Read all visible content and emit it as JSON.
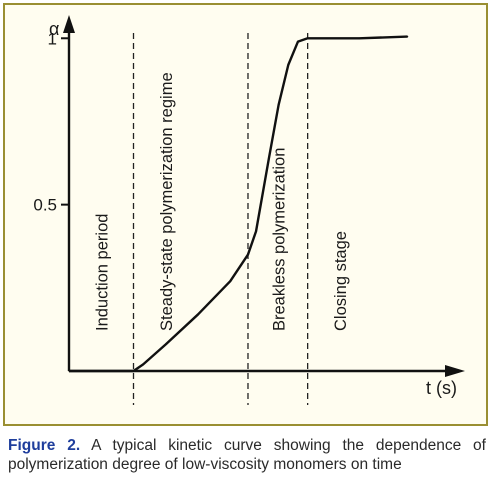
{
  "chart_data": {
    "type": "line",
    "title": "",
    "xlabel": "t (s)",
    "ylabel": "α",
    "ylim": [
      0,
      1.1
    ],
    "xlim": [
      0,
      12
    ],
    "yticks": [
      {
        "value": 0.5,
        "label": "0.5"
      },
      {
        "value": 1,
        "label": "1"
      }
    ],
    "series": [
      {
        "x": [
          0,
          2.0,
          2.3,
          3.0,
          4.0,
          5.0,
          5.55,
          5.8,
          6.2,
          6.5,
          6.8,
          7.1,
          7.4,
          8.0,
          9.0,
          10.5
        ],
        "y": [
          0.0,
          0.0,
          0.02,
          0.08,
          0.17,
          0.27,
          0.35,
          0.42,
          0.64,
          0.8,
          0.92,
          0.99,
          1.0,
          1.0,
          1.0,
          1.005
        ]
      }
    ],
    "stage_boundaries": [
      2.0,
      5.55,
      7.4
    ],
    "regions": [
      {
        "label": "Induction period",
        "x": 1.0
      },
      {
        "label": "Steady-state polymerization regime",
        "x": 3.0
      },
      {
        "label": "Breakless polymerization",
        "x": 6.5
      },
      {
        "label": "Closing stage",
        "x": 8.4
      }
    ]
  },
  "caption": {
    "figure_label": "Figure 2.",
    "text": " A typical kinetic curve showing the dependence of polymerization degree of low-viscosity monomers on time"
  }
}
